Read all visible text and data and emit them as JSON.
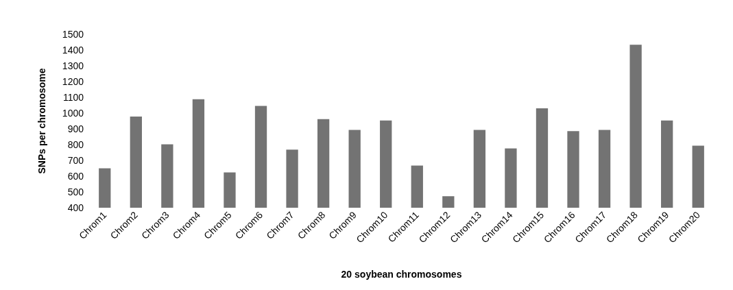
{
  "chart_data": {
    "type": "bar",
    "xlabel": "20 soybean chromosomes",
    "ylabel": "SNPs per chromosome",
    "categories": [
      "Chrom1",
      "Chrom2",
      "Chrom3",
      "Chrom4",
      "Chrom5",
      "Chrom6",
      "Chrom7",
      "Chrom8",
      "Chrom9",
      "Chrom10",
      "Chrom11",
      "Chrom12",
      "Chrom13",
      "Chrom14",
      "Chrom15",
      "Chrom16",
      "Chrom17",
      "Chrom18",
      "Chrom19",
      "Chrom20"
    ],
    "values": [
      650,
      978,
      802,
      1088,
      624,
      1046,
      768,
      962,
      894,
      953,
      667,
      473,
      894,
      776,
      1030,
      886,
      894,
      1434,
      953,
      793
    ],
    "color": "#737373",
    "ylim": [
      400,
      1500
    ],
    "yticks": [
      400,
      500,
      600,
      700,
      800,
      900,
      1000,
      1100,
      1200,
      1300,
      1400,
      1500
    ],
    "grid": false
  }
}
